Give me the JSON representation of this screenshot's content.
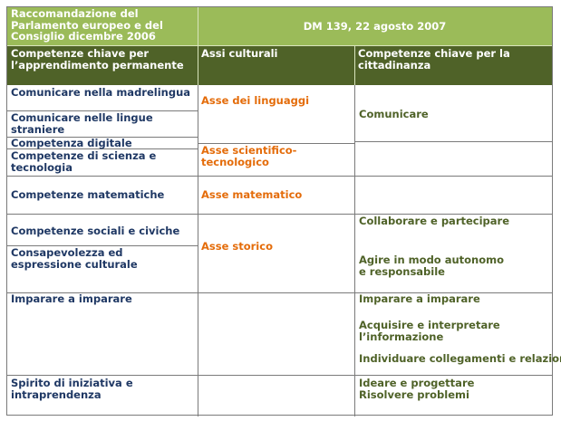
{
  "header": {
    "left_title": "Raccomandazione del Parlamento europeo e del Consiglio dicembre 2006",
    "right_title": "DM 139, 22 agosto 2007"
  },
  "columns": {
    "col1": "Competenze chiave  per l’apprendimento permanente",
    "col2": "Assi culturali",
    "col3": "Competenze chiave  per la cittadinanza"
  },
  "col1_items": [
    "Comunicare  nella madrelingua",
    "Comunicare nelle lingue straniere",
    "Competenza digitale",
    "Competenze di scienza e tecnologia",
    "Competenze matematiche",
    "Competenze sociali e civiche",
    "Consapevolezza ed espressione culturale",
    "Imparare a imparare",
    "Spirito di iniziativa e intraprendenza"
  ],
  "col2_items": [
    "Asse dei linguaggi",
    "Asse scientifico-tecnologico",
    "Asse matematico",
    "Asse storico"
  ],
  "col3_items": [
    "Comunicare",
    "Collaborare e partecipare",
    "Agire in modo autonomo e responsabile",
    "Imparare a imparare",
    "Acquisire e interpretare l’informazione",
    "Individuare collegamenti e relazioni",
    "Ideare e progettare",
    "Risolvere problemi"
  ]
}
